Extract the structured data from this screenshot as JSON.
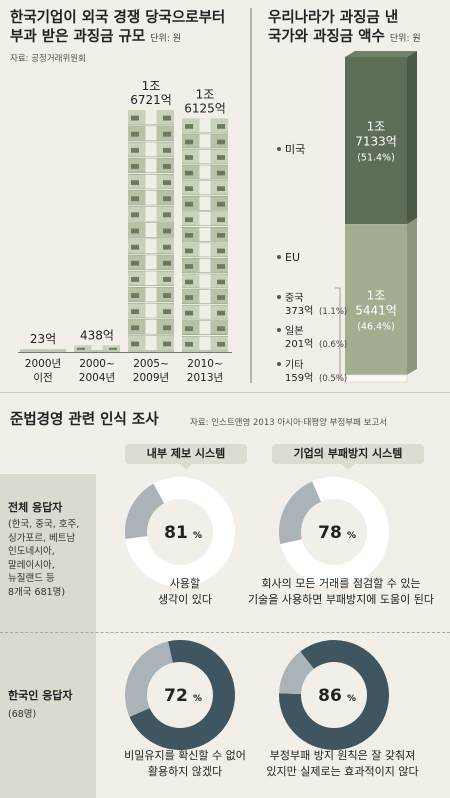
{
  "left_chart": {
    "title_line1": "한국기업이 외국 경쟁 당국으로부터",
    "title_line2": "부과 받은 과징금 규모",
    "unit": "단위: 원",
    "source": "자료: 공정거래위원회"
  },
  "right_chart": {
    "title_line1": "우리나라가 과징금 낸",
    "title_line2": "국가와 과징금 액수",
    "unit": "단위: 원",
    "us_label": "미국",
    "eu_label": "EU",
    "others": [
      {
        "name": "중국",
        "amount": "373억",
        "pct": "(1.1%)"
      },
      {
        "name": "일본",
        "amount": "201억",
        "pct": "(0.6%)"
      },
      {
        "name": "기타",
        "amount": "159억",
        "pct": "(0.5%)"
      }
    ]
  },
  "survey": {
    "title": "준법경영 관련 인식 조사",
    "source": "자료: 인스트앤영 2013 아시아·태평양 부정부패 보고서",
    "col1_tag": "내부 제보 시스템",
    "col2_tag": "기업의 부패방지 시스템",
    "group1_title": "전체 응답자",
    "group1_detail_lines": [
      "(한국, 중국, 호주,",
      "싱가포르, 베트남",
      "인도네시아,",
      "말레이시아,",
      "뉴질랜드 등",
      "8개국 681명)"
    ],
    "group2_title": "한국인 응답자",
    "group2_detail": "(68명)",
    "q1_desc_lines": [
      "사용할",
      "생각이 있다"
    ],
    "q2_desc_lines": [
      "회사의 모든 거래를 점검할 수 있는",
      "기술을 사용하면 부패방지에 도움이 된다"
    ],
    "q3_desc_lines": [
      "비밀유지를 확신할 수 없어",
      "활용하지 않겠다"
    ],
    "q4_desc_lines": [
      "부정부패 방지 원칙은 잘 갖춰져",
      "있지만 실제로는 효과적이지 않다"
    ]
  },
  "colors": {
    "background": "#f1efe7",
    "dark_green": "#5c6e57",
    "light_green": "#a3ad90",
    "donut_dark": "#3f5560",
    "donut_light": "#a9b3b8",
    "cream": "#fbf9f1"
  },
  "chart_data": [
    {
      "type": "bar",
      "title": "한국기업이 외국 경쟁 당국으로부터 부과 받은 과징금 규모",
      "categories": [
        "2000년 이전",
        "2000~2004년",
        "2005~2009년",
        "2010~2013년"
      ],
      "category_lines": [
        [
          "2000년",
          "이전"
        ],
        [
          "2000~",
          "2004년"
        ],
        [
          "2005~",
          "2009년"
        ],
        [
          "2010~",
          "2013년"
        ]
      ],
      "values": [
        23,
        438,
        16721,
        16125
      ],
      "value_labels": [
        [
          "23억"
        ],
        [
          "438억"
        ],
        [
          "1조",
          "6721억"
        ],
        [
          "1조",
          "6125억"
        ]
      ],
      "unit": "억원"
    },
    {
      "type": "bar",
      "title": "우리나라가 과징금 낸 국가와 과징금 액수",
      "stacked": true,
      "categories": [
        "미국",
        "EU",
        "중국",
        "일본",
        "기타"
      ],
      "values": [
        17133,
        15441,
        373,
        201,
        159
      ],
      "percentages": [
        51.4,
        46.4,
        1.1,
        0.6,
        0.5
      ],
      "segment_labels": [
        {
          "value_lines": [
            "1조",
            "7133억"
          ],
          "pct": "(51.4%)"
        },
        {
          "value_lines": [
            "1조",
            "5441억"
          ],
          "pct": "(46.4%)"
        }
      ],
      "unit": "억원"
    },
    {
      "type": "pie",
      "title": "준법경영 관련 인식 조사",
      "items": [
        {
          "group": "전체 응답자",
          "question": "내부 제보 시스템",
          "value": 81,
          "label": "81"
        },
        {
          "group": "전체 응답자",
          "question": "기업의 부패방지 시스템",
          "value": 78,
          "label": "78"
        },
        {
          "group": "한국인 응답자",
          "question": "내부 제보 시스템",
          "value": 72,
          "label": "72"
        },
        {
          "group": "한국인 응답자",
          "question": "기업의 부패방지 시스템",
          "value": 86,
          "label": "86"
        }
      ],
      "pct_sign": "%"
    }
  ]
}
